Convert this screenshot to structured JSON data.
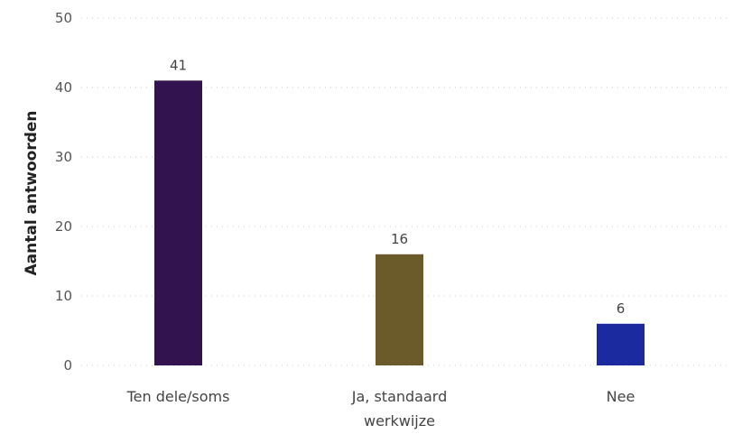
{
  "chart_data": {
    "type": "bar",
    "categories": [
      "Ten dele/soms",
      "Ja, standaard werkwijze",
      "Nee"
    ],
    "category_lines": [
      [
        "Ten dele/soms"
      ],
      [
        "Ja, standaard",
        "werkwijze"
      ],
      [
        "Nee"
      ]
    ],
    "values": [
      41,
      16,
      6
    ],
    "data_labels": [
      "41",
      "16",
      "6"
    ],
    "colors": [
      "#33134f",
      "#6b5a2a",
      "#1c2aa0"
    ],
    "ylabel": "Aantal antwoorden",
    "ylim": [
      0,
      50
    ],
    "yticks": [
      0,
      10,
      20,
      30,
      40,
      50
    ],
    "grid": true
  }
}
